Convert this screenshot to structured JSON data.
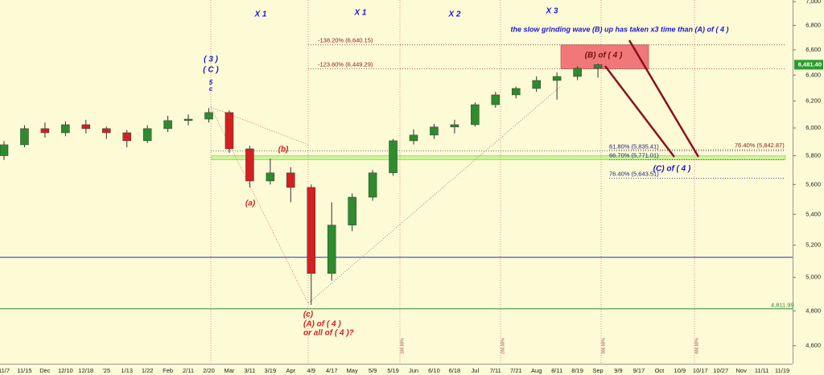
{
  "chart_data": {
    "type": "candlestick",
    "log_scale": true,
    "grid": false,
    "background": "#fdfad6",
    "up_color": "#2e8b2e",
    "down_color": "#d42020",
    "categories": [
      "11/7",
      "11/15",
      "Dec",
      "12/10",
      "12/18",
      "'25",
      "1/13",
      "1/22",
      "Feb",
      "2/11",
      "2/20",
      "Mar",
      "3/11",
      "3/19",
      "Apr",
      "4/9",
      "4/17",
      "May",
      "5/9",
      "5/19",
      "Jun",
      "6/10",
      "6/18",
      "Jul",
      "7/11",
      "7/21",
      "Aug",
      "8/11",
      "8/19",
      "Sep",
      "9/9",
      "9/17",
      "Oct",
      "10/9",
      "10/17",
      "10/27",
      "Nov",
      "11/11",
      "11/19"
    ],
    "open": [
      5800,
      5878,
      5995,
      5965,
      6024,
      5995,
      5965,
      5907,
      5995,
      6054,
      6065,
      6114,
      5849,
      5624,
      5680,
      5580,
      5024,
      5329,
      5514,
      5680,
      5907,
      5948,
      6007,
      6024,
      6173,
      6247,
      6296,
      6358,
      6389,
      6453,
      null,
      null,
      null,
      null,
      null,
      null,
      null,
      null,
      null
    ],
    "high": [
      5905,
      6020,
      6040,
      6050,
      6060,
      6010,
      5985,
      6020,
      6090,
      6100,
      6147,
      6130,
      5870,
      5780,
      5720,
      5600,
      5480,
      5540,
      5700,
      5920,
      5990,
      6030,
      6060,
      6190,
      6270,
      6310,
      6390,
      6420,
      6470,
      6490,
      null,
      null,
      null,
      null,
      null,
      null,
      null,
      null,
      null
    ],
    "low": [
      5770,
      5860,
      5930,
      5940,
      5960,
      5920,
      5860,
      5890,
      5970,
      6020,
      6040,
      5820,
      5580,
      5600,
      5480,
      4835,
      4980,
      5290,
      5490,
      5660,
      5880,
      5920,
      5960,
      6010,
      6150,
      6220,
      6270,
      6210,
      6360,
      6380,
      null,
      null,
      null,
      null,
      null,
      null,
      null,
      null,
      null
    ],
    "close": [
      5878,
      5995,
      5965,
      6024,
      5995,
      5965,
      5907,
      5995,
      6054,
      6065,
      6114,
      5849,
      5624,
      5680,
      5580,
      5024,
      5329,
      5514,
      5680,
      5907,
      5948,
      6007,
      6024,
      6173,
      6247,
      6296,
      6358,
      6389,
      6453,
      6481,
      null,
      null,
      null,
      null,
      null,
      null,
      null,
      null,
      null
    ],
    "ylim": [
      4500,
      7000
    ],
    "yticks": [
      {
        "value": 4600,
        "label": "4,600"
      },
      {
        "value": 4800,
        "label": "4,800"
      },
      {
        "value": 5000,
        "label": "5,000"
      },
      {
        "value": 5200,
        "label": "5,200"
      },
      {
        "value": 5400,
        "label": "5,400"
      },
      {
        "value": 5600,
        "label": "5,600"
      },
      {
        "value": 5800,
        "label": "5,800"
      },
      {
        "value": 6000,
        "label": "6,000"
      },
      {
        "value": 6200,
        "label": "6,200"
      },
      {
        "value": 6400,
        "label": "6,400"
      },
      {
        "value": 6600,
        "label": "6,600"
      },
      {
        "value": 6800,
        "label": "6,800"
      },
      {
        "value": 7000,
        "label": "7,000"
      }
    ],
    "last_price": {
      "value": 6481.4,
      "label": "6,481.40",
      "color": "#2e9b2e"
    },
    "hlines": [
      {
        "value": 5124,
        "color": "#2233cc"
      },
      {
        "value": 4811.99,
        "label": "4,811.99",
        "color": "#2e8b2e"
      }
    ],
    "fib_levels": [
      {
        "label": "-138.20% (6,640.15)",
        "value": 6640.15,
        "color": "#8b1a1a"
      },
      {
        "label": "-123.60% (6,449.29)",
        "value": 6449.29,
        "color": "#8b1a1a"
      },
      {
        "label": "61.80% (5,835.41)",
        "value": 5835.41,
        "color": "#1a237e"
      },
      {
        "label": "66.70% (5,771.01)",
        "value": 5771.01,
        "color": "#1a237e"
      },
      {
        "label": "76.40% (5,643.51)",
        "value": 5643.51,
        "color": "#1a237e"
      },
      {
        "label": "76.40% (5,842.87)",
        "value": 5842.87,
        "color": "#8b1a1a"
      }
    ],
    "zones": [
      {
        "low": 6449.29,
        "high": 6640.15,
        "color": "#f07878"
      },
      {
        "low": 5771.01,
        "high": 5800,
        "color": "#ccf59a"
      }
    ],
    "time_labels": [
      "100.00%",
      "200.00%",
      "300.00%",
      "400.00%"
    ],
    "annotations": [
      {
        "text": "X 1",
        "color": "#1a1acc"
      },
      {
        "text": "X 1",
        "color": "#1a1acc"
      },
      {
        "text": "X 2",
        "color": "#1a1acc"
      },
      {
        "text": "X 3",
        "color": "#1a1acc"
      },
      {
        "text": "the slow grinding wave (B) up has taken x3 time than (A) of ( 4 )",
        "color": "#1a1acc"
      },
      {
        "text": "( 3 )",
        "color": "#1a1acc"
      },
      {
        "text": "( C )",
        "color": "#1a1acc"
      },
      {
        "text": "5",
        "color": "#1a1acc"
      },
      {
        "text": "c",
        "color": "#1a1acc"
      },
      {
        "text": "(b)",
        "color": "#d42020"
      },
      {
        "text": "(a)",
        "color": "#d42020"
      },
      {
        "text": "(c)",
        "color": "#d42020"
      },
      {
        "text": "(A) of ( 4 )",
        "color": "#d42020"
      },
      {
        "text": "or all of ( 4 )?",
        "color": "#d42020"
      },
      {
        "text": "(B) of ( 4 )",
        "color": "#7a1010"
      },
      {
        "text": "(C) of ( 4 )",
        "color": "#1a1acc"
      }
    ]
  }
}
